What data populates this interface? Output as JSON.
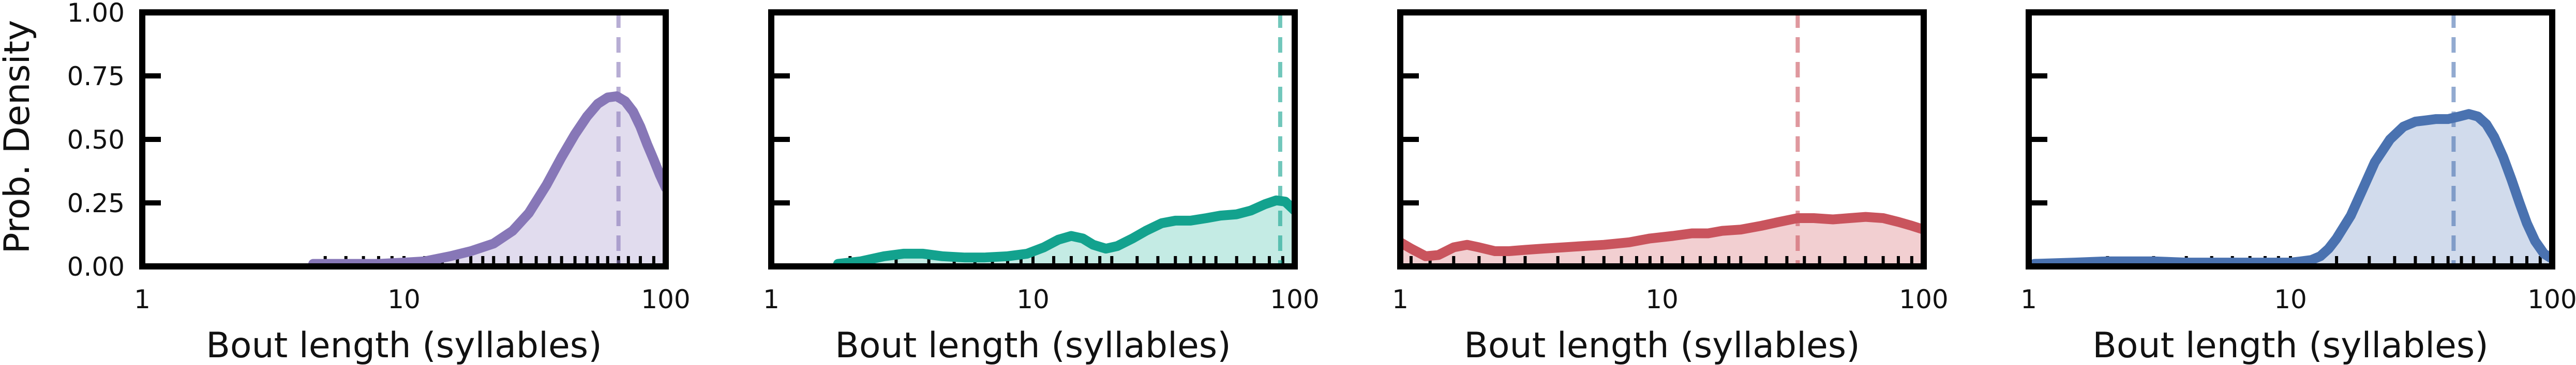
{
  "figure": {
    "ylabel": "Prob. Density",
    "xlabel": "Bout length (syllables)"
  },
  "chart_data": [
    {
      "type": "area",
      "title": "",
      "xscale": "log",
      "xlim": [
        1,
        100
      ],
      "ylim": [
        0,
        1
      ],
      "xlabel": "Bout length (syllables)",
      "ylabel": "Prob. Density",
      "xticks": [
        1,
        10,
        100
      ],
      "xtick_labels": [
        "1",
        "10",
        "100"
      ],
      "yticks": [
        0,
        0.25,
        0.5,
        0.75,
        1.0
      ],
      "ytick_labels": [
        "0.00",
        "0.25",
        "0.50",
        "0.75",
        "1.00"
      ],
      "color": "#8777b7",
      "fill_color": "#e1dcee",
      "median_line": 66,
      "rug": [
        5,
        6,
        7,
        8,
        9,
        10,
        10,
        12,
        14,
        16,
        18,
        20,
        22,
        25,
        28,
        32,
        36,
        40,
        45,
        50,
        55,
        60,
        66,
        72,
        80,
        90,
        100
      ],
      "series": [
        {
          "name": "density",
          "x": [
            4.5,
            6,
            8,
            10,
            12,
            15,
            18,
            22,
            26,
            30,
            35,
            40,
            45,
            50,
            55,
            60,
            65,
            70,
            75,
            80,
            85,
            90,
            95,
            100
          ],
          "y": [
            0.01,
            0.01,
            0.01,
            0.015,
            0.02,
            0.04,
            0.06,
            0.09,
            0.14,
            0.21,
            0.32,
            0.43,
            0.52,
            0.59,
            0.64,
            0.665,
            0.67,
            0.65,
            0.61,
            0.55,
            0.48,
            0.42,
            0.36,
            0.31
          ]
        }
      ]
    },
    {
      "type": "area",
      "title": "",
      "xscale": "log",
      "xlim": [
        1,
        100
      ],
      "ylim": [
        0,
        1
      ],
      "xlabel": "Bout length (syllables)",
      "xticks": [
        1,
        10,
        100
      ],
      "xtick_labels": [
        "1",
        "10",
        "100"
      ],
      "yticks": [
        0,
        0.25,
        0.5,
        0.75,
        1.0
      ],
      "color": "#13a28e",
      "fill_color": "#c4ebe4",
      "median_line": 88,
      "rug": [
        2,
        3,
        4,
        5,
        6,
        7,
        8,
        9,
        10,
        12,
        14,
        16,
        18,
        20,
        25,
        30,
        35,
        40,
        45,
        50,
        60,
        70,
        80,
        90,
        100
      ],
      "series": [
        {
          "name": "density",
          "x": [
            1.8,
            2.2,
            2.7,
            3.2,
            3.8,
            4.5,
            5.5,
            6.5,
            8,
            9.5,
            11,
            12.5,
            14,
            15.5,
            17,
            19,
            21,
            24,
            27,
            31,
            35,
            40,
            46,
            52,
            60,
            68,
            77,
            85,
            92,
            100
          ],
          "y": [
            0.01,
            0.02,
            0.04,
            0.05,
            0.05,
            0.04,
            0.035,
            0.035,
            0.04,
            0.05,
            0.075,
            0.105,
            0.12,
            0.11,
            0.085,
            0.07,
            0.08,
            0.11,
            0.14,
            0.17,
            0.18,
            0.18,
            0.19,
            0.2,
            0.205,
            0.22,
            0.245,
            0.26,
            0.255,
            0.22
          ]
        }
      ]
    },
    {
      "type": "area",
      "title": "",
      "xscale": "log",
      "xlim": [
        1,
        100
      ],
      "ylim": [
        0,
        1
      ],
      "xlabel": "Bout length (syllables)",
      "xticks": [
        1,
        10,
        100
      ],
      "xtick_labels": [
        "1",
        "10",
        "100"
      ],
      "yticks": [
        0,
        0.25,
        0.5,
        0.75,
        1.0
      ],
      "color": "#c9545d",
      "fill_color": "#f2cfd1",
      "median_line": 33,
      "rug": [
        1.1,
        1.3,
        1.6,
        2,
        2.5,
        3,
        4,
        5,
        6,
        7,
        8,
        9,
        10,
        12,
        14,
        16,
        18,
        20,
        25,
        30,
        35,
        40,
        50,
        60,
        70,
        80,
        90,
        100
      ],
      "series": [
        {
          "name": "density",
          "x": [
            1,
            1.1,
            1.25,
            1.4,
            1.6,
            1.8,
            2.0,
            2.3,
            2.6,
            3.0,
            3.5,
            4.2,
            5,
            6,
            7.5,
            9,
            11,
            13,
            15,
            17,
            20,
            24,
            28,
            33,
            38,
            45,
            52,
            60,
            70,
            80,
            90,
            100
          ],
          "y": [
            0.095,
            0.07,
            0.04,
            0.045,
            0.075,
            0.085,
            0.075,
            0.06,
            0.06,
            0.065,
            0.07,
            0.075,
            0.08,
            0.085,
            0.095,
            0.11,
            0.12,
            0.13,
            0.13,
            0.14,
            0.145,
            0.16,
            0.175,
            0.19,
            0.19,
            0.185,
            0.19,
            0.195,
            0.19,
            0.175,
            0.16,
            0.145
          ]
        }
      ]
    },
    {
      "type": "area",
      "title": "",
      "xscale": "log",
      "xlim": [
        1,
        100
      ],
      "ylim": [
        0,
        1
      ],
      "xlabel": "Bout length (syllables)",
      "xticks": [
        1,
        10,
        100
      ],
      "xtick_labels": [
        "1",
        "10",
        "100"
      ],
      "yticks": [
        0,
        0.25,
        0.5,
        0.75,
        1.0
      ],
      "color": "#4a72b0",
      "fill_color": "#d1dbec",
      "median_line": 42,
      "rug": [
        2,
        3,
        4,
        5,
        6,
        7,
        8,
        9,
        10,
        15,
        20,
        25,
        30,
        35,
        40,
        45,
        50,
        60,
        70,
        80,
        90,
        100
      ],
      "series": [
        {
          "name": "density",
          "x": [
            1.05,
            1.5,
            2,
            3,
            4,
            5,
            6,
            7,
            8,
            9,
            10,
            11,
            12,
            13,
            14,
            15,
            17,
            19,
            21,
            24,
            27,
            30,
            33,
            36,
            40,
            44,
            48,
            52,
            56,
            60,
            65,
            70,
            75,
            80,
            86,
            93,
            100
          ],
          "y": [
            0.01,
            0.015,
            0.02,
            0.02,
            0.015,
            0.015,
            0.015,
            0.015,
            0.015,
            0.015,
            0.015,
            0.02,
            0.025,
            0.04,
            0.07,
            0.11,
            0.2,
            0.31,
            0.41,
            0.5,
            0.55,
            0.57,
            0.575,
            0.58,
            0.58,
            0.59,
            0.6,
            0.59,
            0.56,
            0.51,
            0.43,
            0.34,
            0.25,
            0.17,
            0.1,
            0.05,
            0.03
          ]
        }
      ]
    }
  ]
}
